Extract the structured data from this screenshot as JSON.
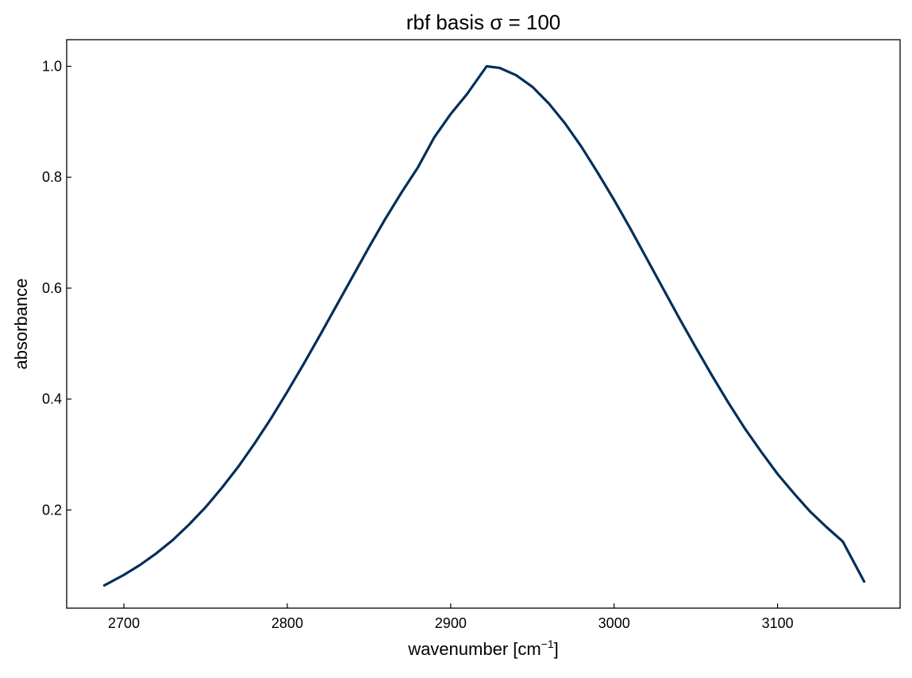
{
  "chart_data": {
    "type": "line",
    "title": "rbf basis σ = 100",
    "xlabel": "wavenumber [cm",
    "xlabel_sup": "−1",
    "xlabel_close": "]",
    "ylabel": "absorbance",
    "xlim": [
      2665,
      3175
    ],
    "ylim": [
      0.023,
      1.048
    ],
    "x_ticks": [
      2700,
      2800,
      2900,
      3000,
      3100
    ],
    "x_tick_labels": [
      "2700",
      "2800",
      "2900",
      "3000",
      "3100"
    ],
    "y_ticks": [
      0.2,
      0.4,
      0.6,
      0.8,
      1.0
    ],
    "y_tick_labels": [
      "0.2",
      "0.4",
      "0.6",
      "0.8",
      "1.0"
    ],
    "grid": false,
    "legend": "none",
    "series": [
      {
        "color": "#002f5a",
        "x": [
          2688,
          2700,
          2710,
          2720,
          2730,
          2740,
          2750,
          2760,
          2770,
          2780,
          2790,
          2800,
          2810,
          2820,
          2830,
          2840,
          2850,
          2860,
          2870,
          2880,
          2890,
          2900,
          2910,
          2922,
          2930,
          2940,
          2950,
          2960,
          2970,
          2980,
          2990,
          3000,
          3010,
          3020,
          3030,
          3040,
          3050,
          3060,
          3070,
          3080,
          3090,
          3100,
          3110,
          3120,
          3130,
          3140,
          3153
        ],
        "y": [
          0.064,
          0.083,
          0.101,
          0.122,
          0.146,
          0.174,
          0.205,
          0.24,
          0.278,
          0.32,
          0.365,
          0.413,
          0.463,
          0.515,
          0.568,
          0.621,
          0.674,
          0.725,
          0.773,
          0.818,
          0.872,
          0.914,
          0.95,
          1.0,
          0.997,
          0.984,
          0.963,
          0.933,
          0.897,
          0.855,
          0.808,
          0.759,
          0.707,
          0.653,
          0.599,
          0.545,
          0.493,
          0.442,
          0.393,
          0.347,
          0.305,
          0.265,
          0.23,
          0.197,
          0.169,
          0.143,
          0.071
        ]
      }
    ]
  }
}
